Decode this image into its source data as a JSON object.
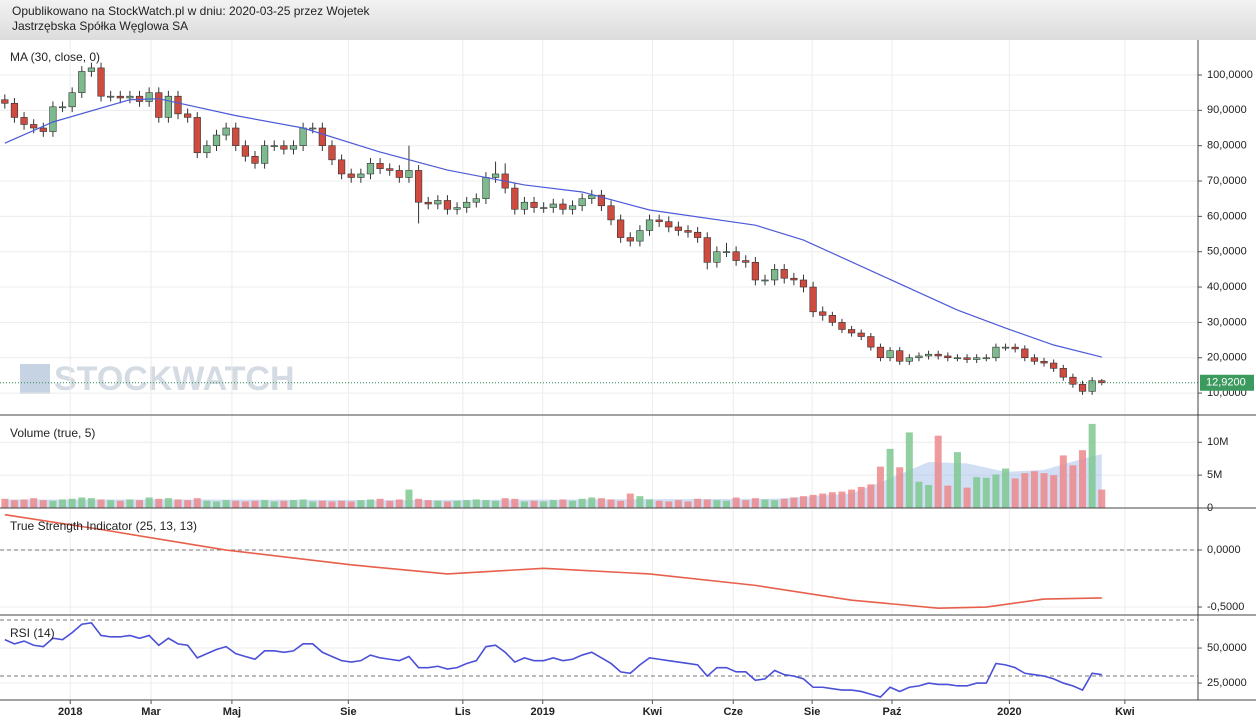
{
  "header": {
    "published": "Opublikowano na StockWatch.pl w dniu: 2020-03-25 przez Wojetek",
    "company": "Jastrzębska Spółka Węglowa SA"
  },
  "watermark": "STOCKWATCH",
  "chart_data": [
    {
      "type": "candlestick",
      "title": "MA (30, close, 0)",
      "open": [
        93,
        92,
        88,
        86,
        85,
        84,
        91,
        91,
        95,
        101,
        102,
        94,
        94,
        93.5,
        94,
        92.5,
        95,
        88,
        94,
        89,
        88,
        78,
        80,
        83,
        85,
        80,
        77,
        75,
        80,
        80,
        79,
        80,
        85,
        85,
        80,
        76,
        72,
        71,
        72,
        75,
        73.5,
        73,
        71,
        73,
        64,
        63.5,
        64.5,
        62,
        62.5,
        64,
        65,
        71,
        72,
        68,
        62,
        64,
        62.5,
        62.5,
        63.5,
        62,
        63,
        65,
        66,
        63,
        59,
        54,
        53,
        56,
        59,
        58.5,
        57,
        56,
        55.5,
        54,
        47,
        50,
        50,
        47.5,
        47,
        42,
        42,
        45,
        42.5,
        42,
        40,
        33,
        32,
        30,
        28,
        27,
        26,
        23,
        20,
        22,
        19,
        20,
        20.5,
        21,
        20.5,
        20,
        20,
        19.5,
        20,
        20,
        23,
        23,
        22.5,
        20,
        19,
        18.5,
        17,
        14.5,
        12.5,
        10.5,
        13.5
      ],
      "high": [
        94.5,
        93.5,
        89.5,
        87.5,
        86.5,
        92.5,
        92.5,
        96.5,
        102.5,
        103.5,
        103.5,
        95.5,
        95.5,
        95.5,
        95.5,
        96.5,
        96.5,
        95.5,
        95.5,
        90.5,
        89.5,
        81.5,
        84.5,
        86.5,
        86.5,
        81.5,
        78.5,
        81.5,
        81.5,
        81.5,
        81.5,
        86.5,
        86.5,
        86.5,
        81.5,
        77.5,
        73.5,
        73.5,
        76.5,
        76.5,
        75,
        74.5,
        80,
        74.5,
        65.5,
        66,
        66,
        64,
        65.5,
        66.5,
        72.5,
        75.5,
        75,
        69.5,
        65.5,
        65.5,
        64,
        65,
        65,
        64.5,
        66.5,
        67.5,
        67.5,
        64.5,
        60.5,
        55.5,
        57.5,
        60.5,
        60.5,
        60,
        58.5,
        57.5,
        57,
        55.5,
        51.5,
        52.5,
        51.5,
        49,
        48.5,
        43.5,
        46.5,
        46.5,
        44,
        43.5,
        41.5,
        34.5,
        33,
        31,
        29,
        28,
        27,
        24,
        23,
        23,
        21,
        21.5,
        22,
        22,
        21.5,
        21,
        21,
        21,
        21,
        24,
        24,
        24,
        23.5,
        21,
        20,
        19.5,
        18,
        15.5,
        13.5,
        14.5,
        14
      ],
      "low": [
        90.5,
        86.5,
        84.5,
        83.5,
        82.5,
        82.5,
        89.5,
        89.5,
        93.5,
        99.5,
        92.5,
        92.5,
        92,
        92,
        91,
        91,
        86.5,
        86.5,
        87.5,
        86.5,
        76.5,
        76.5,
        78.5,
        81.5,
        78.5,
        75.5,
        73.5,
        73.5,
        78.5,
        77.5,
        77.5,
        78.5,
        83.5,
        78.5,
        74.5,
        70.5,
        69.5,
        69.5,
        70.5,
        72,
        71.5,
        69.5,
        69.5,
        58,
        62,
        62,
        60.5,
        60.5,
        61,
        62.5,
        63.5,
        69.5,
        66.5,
        60.5,
        60.5,
        61,
        61,
        61,
        60.5,
        60.5,
        61.5,
        63.5,
        61.5,
        57.5,
        52.5,
        51.5,
        51.5,
        54.5,
        57,
        55.5,
        54.5,
        54,
        52.5,
        45,
        45.5,
        48.5,
        46,
        45.5,
        40.5,
        40.5,
        40.5,
        41,
        40.5,
        38.5,
        31.5,
        30.5,
        29,
        27,
        26,
        25,
        22,
        19,
        19,
        18,
        18,
        19,
        19.5,
        19.5,
        19,
        19,
        18.5,
        18.5,
        19,
        19,
        22,
        21.5,
        19,
        18,
        17.5,
        16,
        13.5,
        11.5,
        9.5,
        9.5,
        12.2
      ],
      "close": [
        92,
        88,
        86,
        85,
        84,
        91,
        91,
        95,
        101,
        102,
        94,
        94,
        93.5,
        94,
        92.5,
        95,
        88,
        94,
        89,
        88,
        78,
        80,
        83,
        85,
        80,
        77,
        75,
        80,
        80,
        79,
        80,
        85,
        85,
        80,
        76,
        72,
        71,
        72,
        75,
        73.5,
        73,
        71,
        73,
        64,
        63.5,
        64.5,
        62,
        62.5,
        64,
        65,
        71,
        72,
        68,
        62,
        64,
        62.5,
        62.5,
        63.5,
        62,
        63,
        65,
        66,
        63,
        59,
        54,
        53,
        56,
        59,
        58.5,
        57,
        56,
        55.5,
        54,
        47,
        50,
        50,
        47.5,
        47,
        42,
        42,
        45,
        42.5,
        42,
        40,
        33,
        32,
        30,
        28,
        27,
        26,
        23,
        20,
        22,
        19,
        20,
        20.5,
        21,
        20.5,
        20,
        20,
        19.5,
        20,
        20,
        23,
        23,
        22.5,
        20,
        19,
        18.5,
        17,
        14.5,
        12.5,
        10.5,
        13.5,
        12.92
      ],
      "up_color": "#7dbb8e",
      "down_color": "#cf4a3f",
      "overlay": {
        "color": "#4c5ad8",
        "x": [
          0,
          5,
          13,
          16,
          24,
          31,
          39,
          46,
          54,
          60,
          67,
          78,
          83,
          91,
          99,
          104,
          109,
          114
        ],
        "values": [
          80.7,
          86.7,
          93,
          93.3,
          88.5,
          85,
          78.2,
          73.1,
          68.9,
          66.9,
          61.8,
          57.5,
          53.3,
          43.4,
          33.5,
          28.4,
          23.6,
          20.2
        ]
      },
      "price_marker": {
        "value": 12.92,
        "label": "12,9200"
      },
      "ylim": [
        3.8,
        109.9
      ],
      "yticks": [
        {
          "value": 10,
          "label": "10,0000"
        },
        {
          "value": 20,
          "label": "20,0000"
        },
        {
          "value": 30,
          "label": "30,0000"
        },
        {
          "value": 40,
          "label": "40,0000"
        },
        {
          "value": 50,
          "label": "50,0000"
        },
        {
          "value": 60,
          "label": "60,0000"
        },
        {
          "value": 70,
          "label": "70,0000"
        },
        {
          "value": 80,
          "label": "80,0000"
        },
        {
          "value": 90,
          "label": "90,0000"
        },
        {
          "value": 100,
          "label": "100,0000"
        }
      ],
      "grid": true
    },
    {
      "type": "bar",
      "title": "Volume (true, 5)",
      "values": [
        1400000,
        1200000,
        1300000,
        1500000,
        1200000,
        1100000,
        1300000,
        1400000,
        1600000,
        1500000,
        1300000,
        1200000,
        1100000,
        1300000,
        1200000,
        1600000,
        1400000,
        1500000,
        1300000,
        1200000,
        1500000,
        1100000,
        1000000,
        1200000,
        1100000,
        1000000,
        1100000,
        1200000,
        1000000,
        1100000,
        1200000,
        1300000,
        1000000,
        1100000,
        1000000,
        1100000,
        1000000,
        1200000,
        1300000,
        1400000,
        1100000,
        1300000,
        2800000,
        1400000,
        1200000,
        1100000,
        1000000,
        1100000,
        1200000,
        1300000,
        1200000,
        1100000,
        1500000,
        1400000,
        1000000,
        1100000,
        1000000,
        1200000,
        1300000,
        1100000,
        1400000,
        1600000,
        1500000,
        1300000,
        1100000,
        2200000,
        1800000,
        1300000,
        1100000,
        1000000,
        1200000,
        1000000,
        1400000,
        1300000,
        1200000,
        1100000,
        1600000,
        1200000,
        1500000,
        1300000,
        1200000,
        1400000,
        1600000,
        1800000,
        2000000,
        2200000,
        2400000,
        2500000,
        2800000,
        3200000,
        3600000,
        6300000,
        9000000,
        6200000,
        11500000,
        4000000,
        3500000,
        11000000,
        3400000,
        8500000,
        3100000,
        4700000,
        4600000,
        5100000,
        6000000,
        4500000,
        5300000,
        5600000,
        5300000,
        5000000,
        8000000,
        6500000,
        8800000,
        12800000,
        2800000
      ],
      "up_color": "#7fc891",
      "down_color": "#ec8a8c",
      "overlay": {
        "color": "#9ab8e8",
        "x": [
          0,
          20,
          40,
          60,
          80,
          88,
          92,
          96,
          100,
          104,
          108,
          112,
          114
        ],
        "values": [
          1300000,
          1300000,
          1200000,
          1300000,
          1400000,
          2200000,
          4500000,
          7000000,
          6800000,
          5500000,
          5800000,
          7500000,
          8200000
        ]
      },
      "ylim": [
        0,
        14000000
      ],
      "yticks": [
        0,
        {
          "value": 5000000,
          "label": "5M"
        },
        {
          "value": 10000000,
          "label": "10M"
        }
      ],
      "grid": true
    },
    {
      "type": "line",
      "title": "True Strength Indicator (25, 13, 13)",
      "x": [
        0,
        10,
        23,
        36,
        46,
        56,
        67,
        78,
        88,
        97,
        102,
        108,
        114
      ],
      "values": [
        0.31,
        0.18,
        0,
        -0.13,
        -0.21,
        -0.16,
        -0.21,
        -0.31,
        -0.44,
        -0.51,
        -0.5,
        -0.43,
        -0.42
      ],
      "color": "#e8604c",
      "ylim": [
        -0.57,
        0.36
      ],
      "yticks": [
        {
          "value": -0.5,
          "label": "-0,5000"
        },
        {
          "value": 0,
          "label": "0,0000"
        }
      ],
      "levels": [
        0
      ],
      "grid": true
    },
    {
      "type": "line",
      "title": "RSI (14)",
      "values": [
        56,
        53,
        55,
        52,
        51,
        57,
        56,
        61,
        67,
        68,
        59,
        58,
        58,
        59,
        57,
        59,
        52,
        57,
        53,
        52,
        43,
        46,
        49,
        51,
        46,
        44,
        42,
        48,
        48,
        47,
        48,
        53,
        53,
        47,
        44,
        41,
        40,
        41,
        45,
        43,
        42,
        41,
        44,
        36,
        36,
        37,
        35,
        36,
        39,
        41,
        51,
        52,
        47,
        40,
        43,
        41,
        41,
        43,
        41,
        42,
        45,
        47,
        43,
        39,
        33,
        32,
        38,
        43,
        42,
        41,
        40,
        39,
        38,
        30,
        36,
        36,
        33,
        33,
        27,
        28,
        34,
        31,
        30,
        28,
        22,
        22,
        21,
        20,
        20,
        19,
        17,
        15,
        22,
        19,
        22,
        23,
        25,
        24,
        24,
        23,
        23,
        25,
        25,
        39,
        38,
        36,
        32,
        31,
        30,
        28,
        25,
        23,
        20,
        32,
        31
      ],
      "color": "#4b50d8",
      "ylim": [
        12.9,
        72.9
      ],
      "yticks": [
        {
          "value": 25,
          "label": "25,0000"
        },
        {
          "value": 50,
          "label": "50,0000"
        }
      ],
      "levels": [
        70,
        30
      ],
      "grid": true,
      "xlim": [
        -0.5,
        124
      ],
      "xticks": [
        {
          "value": 6.8,
          "label": "2018"
        },
        {
          "value": 15.2,
          "label": "Mar"
        },
        {
          "value": 23.6,
          "label": "Maj"
        },
        {
          "value": 35.7,
          "label": "Sie"
        },
        {
          "value": 47.6,
          "label": "Lis"
        },
        {
          "value": 55.9,
          "label": "2019"
        },
        {
          "value": 67.3,
          "label": "Kwi"
        },
        {
          "value": 75.7,
          "label": "Cze"
        },
        {
          "value": 83.9,
          "label": "Sie"
        },
        {
          "value": 92.2,
          "label": "Paź"
        },
        {
          "value": 104.4,
          "label": "2020"
        },
        {
          "value": 116.4,
          "label": "Kwi"
        }
      ]
    }
  ]
}
